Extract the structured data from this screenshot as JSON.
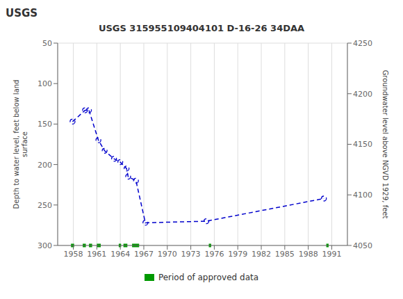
{
  "chart_data": {
    "type": "line",
    "title": "USGS 315955109404101 D-16-26 34DAA",
    "annotations": [
      "USGS"
    ],
    "x": [
      1957.9,
      1959.5,
      1960.0,
      1961.2,
      1962.0,
      1963.2,
      1964.0,
      1964.8,
      1965.0,
      1966.0,
      1967.2,
      1975.0,
      1990.0
    ],
    "values": [
      147,
      133,
      133,
      170,
      183,
      193,
      197,
      205,
      215,
      220,
      272,
      270,
      242
    ],
    "color": "#0000cc",
    "marker": "circle",
    "line_style": "dashed",
    "xlim": [
      1956,
      1993
    ],
    "xticks": [
      1958,
      1961,
      1964,
      1967,
      1970,
      1973,
      1976,
      1979,
      1982,
      1985,
      1988,
      1991
    ],
    "ylim": [
      300,
      50
    ],
    "yticks": [
      50,
      100,
      150,
      200,
      250,
      300
    ],
    "y2lim": [
      4050,
      4250
    ],
    "y2ticks": [
      4050,
      4100,
      4150,
      4200,
      4250
    ],
    "ylabel": "Depth to water level, feet below land\nsurface",
    "y2label": "Groundwater level above NGVD 1929, feet",
    "grid": true,
    "legend": "bottom",
    "approved": {
      "name": "Period of approved data",
      "color": "#009900",
      "y": 300,
      "segments": [
        [
          1957.7,
          1958.1
        ],
        [
          1959.2,
          1959.6
        ],
        [
          1960.0,
          1960.4
        ],
        [
          1961.0,
          1961.5
        ],
        [
          1963.8,
          1964.1
        ],
        [
          1964.4,
          1964.9
        ],
        [
          1965.5,
          1966.4
        ],
        [
          1975.3,
          1975.6
        ],
        [
          1990.3,
          1990.6
        ]
      ]
    }
  }
}
